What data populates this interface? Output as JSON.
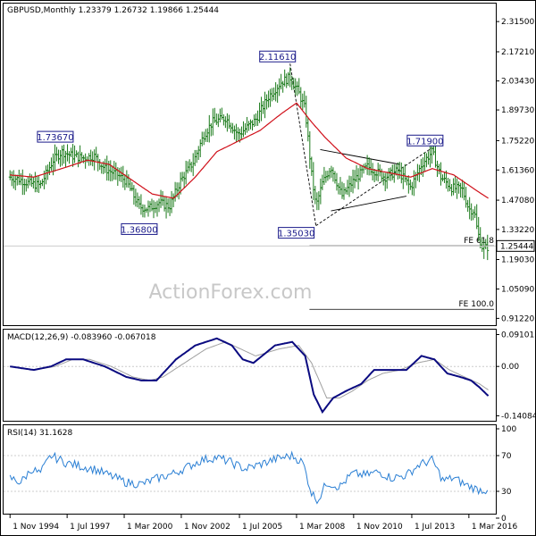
{
  "chart_data": [
    {
      "type": "candlestick",
      "title": "GBPUSD,Monthly  1.23379 1.26732 1.19866 1.25444",
      "watermark": "ActionForex.com",
      "ylim": [
        0.88,
        2.4
      ],
      "y_ticks": [
        "2.31500",
        "2.17210",
        "2.03430",
        "1.89730",
        "1.75220",
        "1.61360",
        "1.47080",
        "1.33220",
        "1.19030",
        "1.05090",
        "0.91220"
      ],
      "y_tick_values": [
        2.315,
        2.1721,
        2.0343,
        1.8973,
        1.7522,
        1.6136,
        1.4708,
        1.3322,
        1.1903,
        1.0509,
        0.9122
      ],
      "current_price_label": "1.25444",
      "current_price": 1.25444,
      "price_anchors": [
        [
          1994.9,
          1.58
        ],
        [
          1995.3,
          1.57
        ],
        [
          1995.8,
          1.55
        ],
        [
          1996.3,
          1.54
        ],
        [
          1996.9,
          1.66
        ],
        [
          1997.3,
          1.7
        ],
        [
          1997.8,
          1.68
        ],
        [
          1998.3,
          1.67
        ],
        [
          1998.8,
          1.68
        ],
        [
          1999.3,
          1.62
        ],
        [
          1999.9,
          1.59
        ],
        [
          2000.3,
          1.56
        ],
        [
          2000.6,
          1.5
        ],
        [
          2000.9,
          1.44
        ],
        [
          2001.3,
          1.43
        ],
        [
          2001.8,
          1.46
        ],
        [
          2002.3,
          1.44
        ],
        [
          2002.8,
          1.56
        ],
        [
          2003.4,
          1.65
        ],
        [
          2003.9,
          1.78
        ],
        [
          2004.3,
          1.84
        ],
        [
          2004.9,
          1.86
        ],
        [
          2005.5,
          1.78
        ],
        [
          2006.3,
          1.85
        ],
        [
          2006.9,
          1.96
        ],
        [
          2007.5,
          2.03
        ],
        [
          2007.9,
          2.05
        ],
        [
          2008.3,
          1.98
        ],
        [
          2008.6,
          1.9
        ],
        [
          2008.9,
          1.59
        ],
        [
          2009.1,
          1.44
        ],
        [
          2009.4,
          1.55
        ],
        [
          2009.8,
          1.63
        ],
        [
          2010.3,
          1.49
        ],
        [
          2010.9,
          1.57
        ],
        [
          2011.5,
          1.63
        ],
        [
          2012.3,
          1.58
        ],
        [
          2012.9,
          1.61
        ],
        [
          2013.5,
          1.53
        ],
        [
          2014.0,
          1.64
        ],
        [
          2014.5,
          1.7
        ],
        [
          2014.9,
          1.58
        ],
        [
          2015.4,
          1.53
        ],
        [
          2015.9,
          1.52
        ],
        [
          2016.2,
          1.43
        ],
        [
          2016.45,
          1.42
        ],
        [
          2016.6,
          1.32
        ],
        [
          2016.85,
          1.24
        ],
        [
          2017.1,
          1.25
        ]
      ],
      "ma_anchors": [
        [
          1994.9,
          1.59
        ],
        [
          1996.0,
          1.58
        ],
        [
          1997.3,
          1.62
        ],
        [
          1998.5,
          1.66
        ],
        [
          1999.5,
          1.64
        ],
        [
          2000.5,
          1.57
        ],
        [
          2001.5,
          1.5
        ],
        [
          2002.5,
          1.48
        ],
        [
          2003.5,
          1.58
        ],
        [
          2004.5,
          1.7
        ],
        [
          2005.5,
          1.75
        ],
        [
          2006.5,
          1.8
        ],
        [
          2007.5,
          1.88
        ],
        [
          2008.2,
          1.93
        ],
        [
          2008.9,
          1.84
        ],
        [
          2009.5,
          1.77
        ],
        [
          2010.5,
          1.67
        ],
        [
          2011.5,
          1.62
        ],
        [
          2012.5,
          1.6
        ],
        [
          2013.5,
          1.58
        ],
        [
          2014.5,
          1.62
        ],
        [
          2015.5,
          1.59
        ],
        [
          2016.5,
          1.52
        ],
        [
          2017.1,
          1.48
        ]
      ],
      "swing_labels": [
        {
          "label": "1.73670",
          "x": 1997.5,
          "y": 1.7367
        },
        {
          "label": "1.36800",
          "x": 2000.9,
          "y": 1.368
        },
        {
          "label": "2.11610",
          "x": 2007.9,
          "y": 2.1161
        },
        {
          "label": "1.35030",
          "x": 2009.1,
          "y": 1.3503
        },
        {
          "label": "1.71900",
          "x": 2014.5,
          "y": 1.719
        }
      ],
      "fib_levels": [
        {
          "label": "FE 61.8",
          "value": 1.255
        },
        {
          "label": "FE 100.0",
          "value": 0.955
        }
      ]
    },
    {
      "type": "line",
      "title": "MACD(12,26,9) -0.083960 -0.067018",
      "ylim": [
        -0.155,
        0.105
      ],
      "y_ticks": [
        "0.091015",
        "0.00",
        "-0.140843"
      ],
      "y_tick_values": [
        0.091015,
        0.0,
        -0.140843
      ],
      "zero_line": 0.0,
      "macd_anchors": [
        [
          1994.9,
          0.0
        ],
        [
          1996.0,
          -0.01
        ],
        [
          1996.8,
          0.0
        ],
        [
          1997.5,
          0.02
        ],
        [
          1998.3,
          0.02
        ],
        [
          1999.3,
          0.0
        ],
        [
          2000.3,
          -0.03
        ],
        [
          2001.0,
          -0.04
        ],
        [
          2001.7,
          -0.04
        ],
        [
          2002.6,
          0.02
        ],
        [
          2003.5,
          0.06
        ],
        [
          2004.5,
          0.08
        ],
        [
          2005.2,
          0.06
        ],
        [
          2005.7,
          0.02
        ],
        [
          2006.2,
          0.01
        ],
        [
          2007.2,
          0.06
        ],
        [
          2008.0,
          0.07
        ],
        [
          2008.6,
          0.03
        ],
        [
          2009.0,
          -0.08
        ],
        [
          2009.4,
          -0.13
        ],
        [
          2009.9,
          -0.09
        ],
        [
          2010.5,
          -0.07
        ],
        [
          2011.2,
          -0.05
        ],
        [
          2011.8,
          -0.01
        ],
        [
          2012.6,
          -0.01
        ],
        [
          2013.3,
          -0.01
        ],
        [
          2014.0,
          0.03
        ],
        [
          2014.6,
          0.02
        ],
        [
          2015.2,
          -0.02
        ],
        [
          2015.8,
          -0.03
        ],
        [
          2016.3,
          -0.04
        ],
        [
          2016.7,
          -0.06
        ],
        [
          2017.1,
          -0.084
        ]
      ],
      "signal_anchors": [
        [
          1994.9,
          0.0
        ],
        [
          1996.0,
          -0.01
        ],
        [
          1997.0,
          0.0
        ],
        [
          1997.8,
          0.02
        ],
        [
          1998.6,
          0.02
        ],
        [
          1999.6,
          0.0
        ],
        [
          2000.6,
          -0.03
        ],
        [
          2001.4,
          -0.04
        ],
        [
          2002.0,
          -0.03
        ],
        [
          2003.0,
          0.01
        ],
        [
          2004.0,
          0.05
        ],
        [
          2004.9,
          0.07
        ],
        [
          2005.6,
          0.05
        ],
        [
          2006.3,
          0.03
        ],
        [
          2007.4,
          0.05
        ],
        [
          2008.3,
          0.06
        ],
        [
          2008.9,
          0.01
        ],
        [
          2009.6,
          -0.09
        ],
        [
          2010.2,
          -0.09
        ],
        [
          2010.8,
          -0.07
        ],
        [
          2011.5,
          -0.04
        ],
        [
          2012.2,
          -0.02
        ],
        [
          2013.0,
          -0.01
        ],
        [
          2013.8,
          0.01
        ],
        [
          2014.6,
          0.02
        ],
        [
          2015.3,
          -0.01
        ],
        [
          2016.0,
          -0.03
        ],
        [
          2016.7,
          -0.05
        ],
        [
          2017.1,
          -0.067
        ]
      ]
    },
    {
      "type": "line",
      "title": "RSI(14) 31.1628",
      "ylim": [
        0,
        100
      ],
      "y_ticks": [
        "100",
        "70",
        "30",
        "0"
      ],
      "y_tick_values": [
        100,
        70,
        30,
        0
      ],
      "reference_lines": [
        70,
        30
      ],
      "rsi_anchors": [
        [
          1994.9,
          45
        ],
        [
          1995.4,
          40
        ],
        [
          1995.9,
          55
        ],
        [
          1996.3,
          50
        ],
        [
          1996.8,
          70
        ],
        [
          1997.5,
          62
        ],
        [
          1998.2,
          58
        ],
        [
          1998.8,
          55
        ],
        [
          1999.5,
          48
        ],
        [
          2000.3,
          40
        ],
        [
          2001.0,
          38
        ],
        [
          2001.8,
          45
        ],
        [
          2002.5,
          50
        ],
        [
          2003.2,
          58
        ],
        [
          2003.8,
          65
        ],
        [
          2004.5,
          68
        ],
        [
          2005.2,
          62
        ],
        [
          2005.8,
          55
        ],
        [
          2006.5,
          60
        ],
        [
          2007.2,
          66
        ],
        [
          2008.0,
          70
        ],
        [
          2008.5,
          62
        ],
        [
          2008.9,
          28
        ],
        [
          2009.2,
          20
        ],
        [
          2009.6,
          40
        ],
        [
          2010.2,
          35
        ],
        [
          2010.8,
          50
        ],
        [
          2011.4,
          48
        ],
        [
          2012.0,
          52
        ],
        [
          2012.6,
          45
        ],
        [
          2013.3,
          48
        ],
        [
          2013.9,
          60
        ],
        [
          2014.5,
          65
        ],
        [
          2015.0,
          42
        ],
        [
          2015.5,
          45
        ],
        [
          2016.0,
          38
        ],
        [
          2016.6,
          32
        ],
        [
          2017.1,
          31.16
        ]
      ]
    }
  ],
  "x_axis": {
    "labels": [
      "1 Nov 1994",
      "1 Jul 1997",
      "1 Mar 2000",
      "1 Nov 2002",
      "1 Jul 2005",
      "1 Mar 2008",
      "1 Nov 2010",
      "1 Jul 2013",
      "1 Mar 2016"
    ],
    "label_positions": [
      1994.9,
      1997.55,
      2000.2,
      2002.85,
      2005.55,
      2008.2,
      2010.85,
      2013.55,
      2016.2
    ],
    "range": [
      1994.6,
      2017.45
    ]
  },
  "colors": {
    "price": "#1a7a1a",
    "moving_average": "#d0101a",
    "macd": "#0a0a80",
    "signal": "#a0a0a0",
    "rsi": "#2a7fd4",
    "label_box": "#1a1a8a",
    "trend": "#000000",
    "grid": "#cccccc"
  }
}
